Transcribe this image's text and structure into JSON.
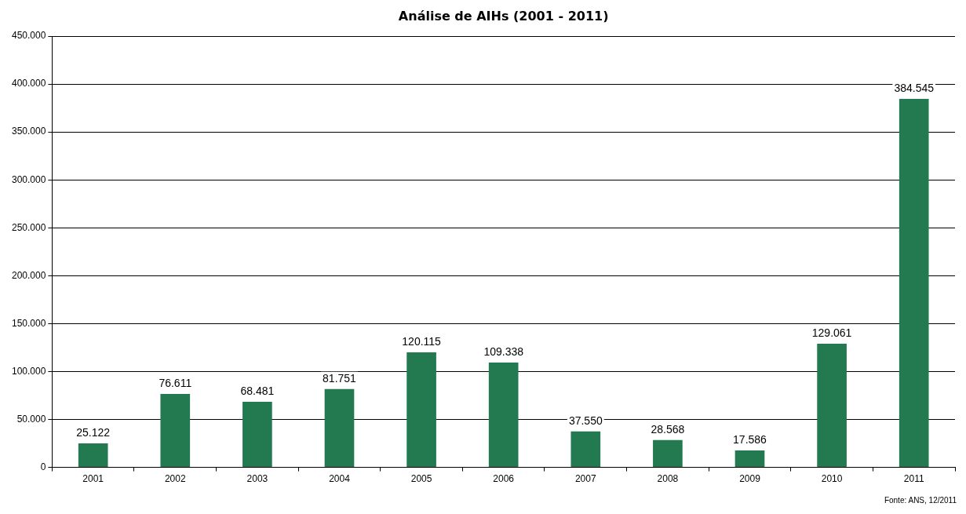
{
  "chart_data": {
    "type": "bar",
    "title": "Análise de AIHs (2001 - 2011)",
    "categories": [
      "2001",
      "2002",
      "2003",
      "2004",
      "2005",
      "2006",
      "2007",
      "2008",
      "2009",
      "2010",
      "2011"
    ],
    "values": [
      25122,
      76611,
      68481,
      81751,
      120115,
      109338,
      37550,
      28568,
      17586,
      129061,
      384545
    ],
    "value_labels": [
      "25.122",
      "76.611",
      "68.481",
      "81.751",
      "120.115",
      "109.338",
      "37.550",
      "28.568",
      "17.586",
      "129.061",
      "384.545"
    ],
    "color": "#237a50",
    "ylim": [
      0,
      450000
    ],
    "yticks": [
      {
        "value": 0,
        "label": "0"
      },
      {
        "value": 50000,
        "label": "50.000"
      },
      {
        "value": 100000,
        "label": "100.000"
      },
      {
        "value": 150000,
        "label": "150.000"
      },
      {
        "value": 200000,
        "label": "200.000"
      },
      {
        "value": 250000,
        "label": "250.000"
      },
      {
        "value": 300000,
        "label": "300.000"
      },
      {
        "value": 350000,
        "label": "350.000"
      },
      {
        "value": 400000,
        "label": "400.000"
      },
      {
        "value": 450000,
        "label": "450.000"
      }
    ],
    "grid": "y",
    "legend": false,
    "annotations": [
      "Fonte: ANS, 12/2011"
    ]
  }
}
